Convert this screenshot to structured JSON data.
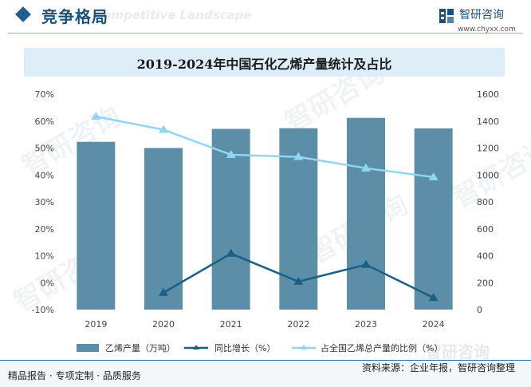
{
  "header": {
    "section_title": "竞争格局",
    "section_subtitle": "Competitive Landscape",
    "brand_name": "智研咨询",
    "brand_url": "www.chyxx.com"
  },
  "watermark": "智研咨询",
  "footer": {
    "left": "精品报告 · 专项定制 · 品质服务",
    "source": "资料来源：企业年报，智研咨询整理"
  },
  "colors": {
    "bar": "#5c8ea8",
    "growth_line": "#1a5f85",
    "share_line": "#8fd6f3",
    "title_band": "#ddeef8",
    "brand": "#1d4f7a"
  },
  "chart_data": {
    "type": "bar",
    "title": "2019-2024年中国石化乙烯产量统计及占比",
    "categories": [
      "2019",
      "2020",
      "2021",
      "2022",
      "2023",
      "2024"
    ],
    "y_left": {
      "ticks": [
        "70%",
        "60%",
        "50%",
        "40%",
        "30%",
        "20%",
        "10%",
        "0%",
        "-10%"
      ],
      "range": [
        -10,
        70
      ]
    },
    "y_right": {
      "ticks": [
        "1600",
        "1400",
        "1200",
        "1000",
        "800",
        "600",
        "400",
        "200",
        "0"
      ],
      "range": [
        0,
        1600
      ]
    },
    "series": [
      {
        "name": "乙烯产量（万吨）",
        "kind": "bar",
        "axis": "right",
        "values": [
          1246,
          1200,
          1342,
          1347,
          1424,
          1346
        ]
      },
      {
        "name": "同比增长（%）",
        "kind": "line",
        "axis": "left",
        "values": [
          null,
          -3.7,
          10.8,
          0.4,
          6.7,
          -5.6
        ]
      },
      {
        "name": "占全国乙烯总产量的比例（%）",
        "kind": "line",
        "axis": "left",
        "values": [
          61.7,
          56.8,
          47.5,
          46.7,
          42.5,
          39.2
        ]
      }
    ]
  }
}
